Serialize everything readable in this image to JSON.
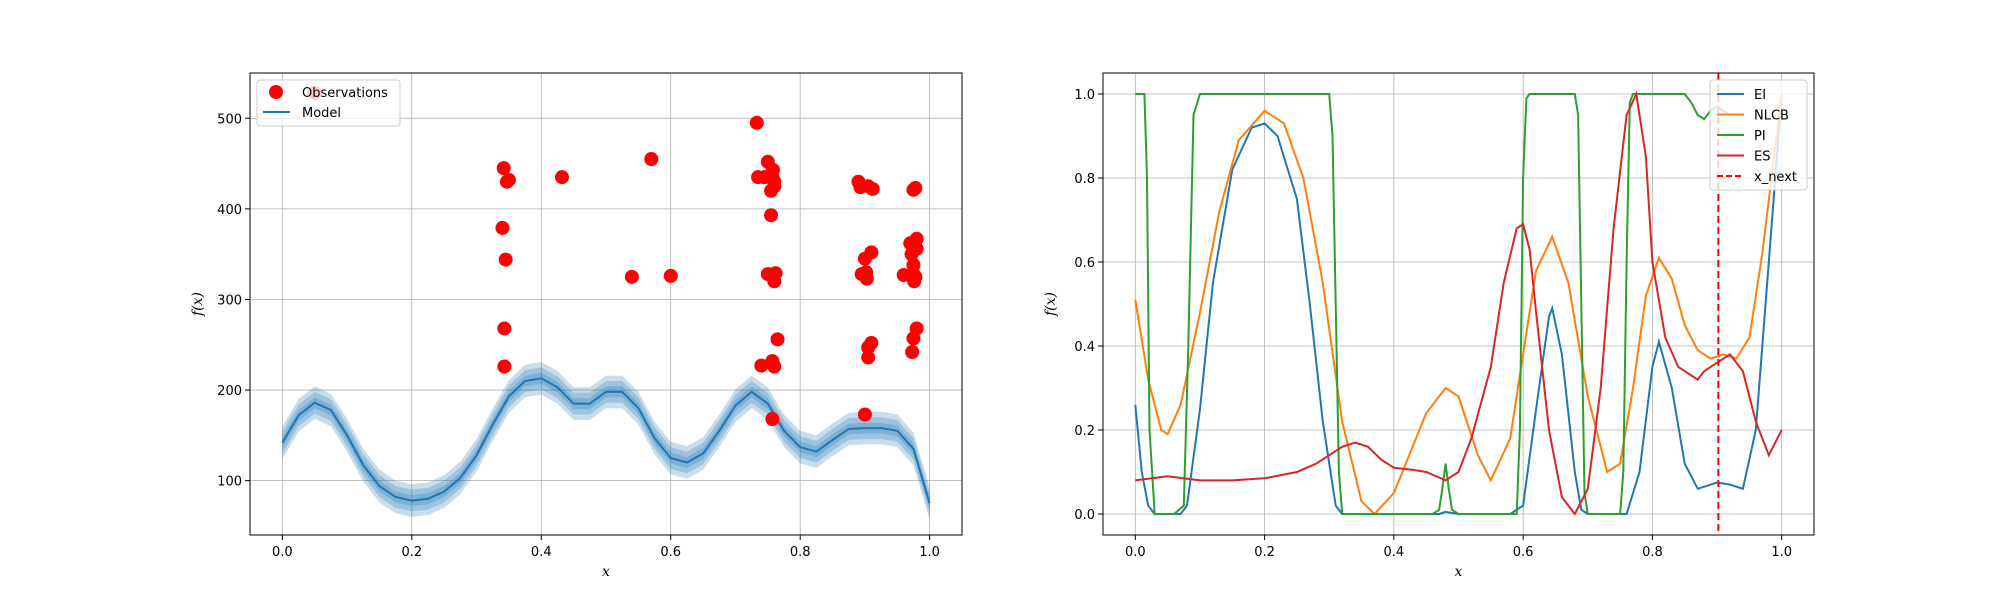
{
  "chart_data": [
    {
      "type": "scatter",
      "xlabel": "x",
      "ylabel": "f(x)",
      "xlim": [
        -0.05,
        1.05
      ],
      "ylim": [
        40,
        550
      ],
      "xticks": [
        0.0,
        0.2,
        0.4,
        0.6,
        0.8,
        1.0
      ],
      "xtick_labels": [
        "0.0",
        "0.2",
        "0.4",
        "0.6",
        "0.8",
        "1.0"
      ],
      "yticks": [
        100,
        200,
        300,
        400,
        500
      ],
      "ytick_labels": [
        "100",
        "200",
        "300",
        "400",
        "500"
      ],
      "grid": true,
      "legend_position": "top-left",
      "legend": [
        "Observations",
        "Model"
      ],
      "colors": {
        "observations": "#ff0000",
        "model": "#1f77b4"
      },
      "series": [
        {
          "name": "Observations",
          "points": [
            [
              0.05,
              528
            ],
            [
              0.34,
              379
            ],
            [
              0.345,
              344
            ],
            [
              0.342,
              445
            ],
            [
              0.347,
              430
            ],
            [
              0.35,
              432
            ],
            [
              0.343,
              268
            ],
            [
              0.343,
              226
            ],
            [
              0.432,
              435
            ],
            [
              0.54,
              325
            ],
            [
              0.57,
              455
            ],
            [
              0.6,
              326
            ],
            [
              0.733,
              495
            ],
            [
              0.735,
              435
            ],
            [
              0.74,
              227
            ],
            [
              0.745,
              435
            ],
            [
              0.75,
              452
            ],
            [
              0.75,
              328
            ],
            [
              0.755,
              420
            ],
            [
              0.755,
              393
            ],
            [
              0.757,
              435
            ],
            [
              0.76,
              430
            ],
            [
              0.76,
              425
            ],
            [
              0.758,
              443
            ],
            [
              0.76,
              320
            ],
            [
              0.762,
              329
            ],
            [
              0.76,
              226
            ],
            [
              0.757,
              232
            ],
            [
              0.765,
              256
            ],
            [
              0.757,
              168
            ],
            [
              0.89,
              430
            ],
            [
              0.893,
              424
            ],
            [
              0.895,
              328
            ],
            [
              0.9,
              345
            ],
            [
              0.902,
              330
            ],
            [
              0.905,
              425
            ],
            [
              0.903,
              323
            ],
            [
              0.905,
              247
            ],
            [
              0.905,
              236
            ],
            [
              0.91,
              352
            ],
            [
              0.91,
              252
            ],
            [
              0.912,
              422
            ],
            [
              0.9,
              173
            ],
            [
              0.96,
              327
            ],
            [
              0.97,
              362
            ],
            [
              0.972,
              350
            ],
            [
              0.975,
              338
            ],
            [
              0.975,
              328
            ],
            [
              0.976,
              320
            ],
            [
              0.975,
              421
            ],
            [
              0.978,
              423
            ],
            [
              0.98,
              367
            ],
            [
              0.98,
              356
            ],
            [
              0.978,
              325
            ],
            [
              0.98,
              268
            ],
            [
              0.975,
              257
            ],
            [
              0.973,
              242
            ]
          ]
        },
        {
          "name": "Model",
          "x": [
            0.0,
            0.025,
            0.05,
            0.075,
            0.1,
            0.125,
            0.15,
            0.175,
            0.2,
            0.225,
            0.25,
            0.275,
            0.3,
            0.325,
            0.35,
            0.375,
            0.4,
            0.425,
            0.45,
            0.475,
            0.5,
            0.525,
            0.55,
            0.575,
            0.6,
            0.625,
            0.65,
            0.675,
            0.7,
            0.725,
            0.75,
            0.775,
            0.8,
            0.825,
            0.85,
            0.875,
            0.9,
            0.925,
            0.95,
            0.975,
            1.0
          ],
          "y": [
            142,
            172,
            186,
            178,
            150,
            117,
            94,
            82,
            78,
            80,
            88,
            103,
            128,
            162,
            193,
            210,
            213,
            203,
            185,
            185,
            198,
            198,
            180,
            147,
            125,
            120,
            130,
            155,
            183,
            198,
            185,
            155,
            137,
            132,
            145,
            157,
            158,
            158,
            155,
            135,
            75
          ],
          "band_widths": [
            6,
            12,
            18
          ]
        }
      ]
    },
    {
      "type": "line",
      "xlabel": "x",
      "ylabel": "f(x)",
      "xlim": [
        -0.05,
        1.05
      ],
      "ylim": [
        -0.05,
        1.05
      ],
      "xticks": [
        0.0,
        0.2,
        0.4,
        0.6,
        0.8,
        1.0
      ],
      "xtick_labels": [
        "0.0",
        "0.2",
        "0.4",
        "0.6",
        "0.8",
        "1.0"
      ],
      "yticks": [
        0.0,
        0.2,
        0.4,
        0.6,
        0.8,
        1.0
      ],
      "ytick_labels": [
        "0.0",
        "0.2",
        "0.4",
        "0.6",
        "0.8",
        "1.0"
      ],
      "grid": true,
      "legend_position": "top-right",
      "legend": [
        "EI",
        "NLCB",
        "PI",
        "ES",
        "x_next"
      ],
      "series": [
        {
          "name": "EI",
          "color": "#1f77b4",
          "x": [
            0,
            0.01,
            0.02,
            0.03,
            0.05,
            0.07,
            0.08,
            0.1,
            0.12,
            0.15,
            0.18,
            0.2,
            0.22,
            0.25,
            0.27,
            0.29,
            0.31,
            0.32,
            0.33,
            0.4,
            0.47,
            0.48,
            0.5,
            0.58,
            0.6,
            0.62,
            0.64,
            0.645,
            0.66,
            0.68,
            0.69,
            0.7,
            0.76,
            0.78,
            0.8,
            0.81,
            0.83,
            0.85,
            0.87,
            0.9,
            0.92,
            0.94,
            0.96,
            0.98,
            1.0
          ],
          "y": [
            0.26,
            0.1,
            0.02,
            0,
            0,
            0,
            0.02,
            0.25,
            0.55,
            0.82,
            0.92,
            0.93,
            0.9,
            0.75,
            0.5,
            0.22,
            0.02,
            0,
            0,
            0,
            0,
            0.005,
            0,
            0,
            0.02,
            0.25,
            0.47,
            0.49,
            0.38,
            0.1,
            0.01,
            0,
            0,
            0.1,
            0.35,
            0.41,
            0.3,
            0.12,
            0.06,
            0.075,
            0.07,
            0.06,
            0.2,
            0.6,
            1.0
          ]
        },
        {
          "name": "NLCB",
          "color": "#ff7f0e",
          "x": [
            0,
            0.02,
            0.04,
            0.05,
            0.07,
            0.1,
            0.13,
            0.16,
            0.2,
            0.23,
            0.26,
            0.29,
            0.32,
            0.35,
            0.37,
            0.4,
            0.45,
            0.48,
            0.5,
            0.53,
            0.55,
            0.58,
            0.6,
            0.62,
            0.645,
            0.67,
            0.7,
            0.73,
            0.75,
            0.77,
            0.79,
            0.81,
            0.83,
            0.85,
            0.87,
            0.89,
            0.91,
            0.93,
            0.95,
            0.97,
            1.0
          ],
          "y": [
            0.51,
            0.32,
            0.2,
            0.19,
            0.26,
            0.48,
            0.72,
            0.89,
            0.96,
            0.93,
            0.8,
            0.55,
            0.22,
            0.03,
            0,
            0.05,
            0.24,
            0.3,
            0.28,
            0.14,
            0.08,
            0.18,
            0.38,
            0.58,
            0.66,
            0.55,
            0.28,
            0.1,
            0.12,
            0.3,
            0.52,
            0.61,
            0.56,
            0.45,
            0.39,
            0.37,
            0.38,
            0.37,
            0.42,
            0.62,
            1.0
          ]
        },
        {
          "name": "PI",
          "color": "#2ca02c",
          "x": [
            0,
            0.008,
            0.014,
            0.018,
            0.022,
            0.03,
            0.06,
            0.075,
            0.082,
            0.09,
            0.1,
            0.2,
            0.3,
            0.305,
            0.31,
            0.315,
            0.32,
            0.46,
            0.47,
            0.475,
            0.48,
            0.485,
            0.49,
            0.5,
            0.59,
            0.595,
            0.6,
            0.605,
            0.61,
            0.68,
            0.685,
            0.69,
            0.695,
            0.7,
            0.75,
            0.755,
            0.76,
            0.765,
            0.77,
            0.85,
            0.86,
            0.87,
            0.88,
            0.89,
            0.9,
            0.92
          ],
          "y": [
            1.0,
            1.0,
            1.0,
            0.8,
            0.2,
            0,
            0,
            0.02,
            0.4,
            0.95,
            1.0,
            1.0,
            1.0,
            0.9,
            0.5,
            0.1,
            0,
            0,
            0.01,
            0.06,
            0.12,
            0.06,
            0.01,
            0,
            0,
            0.2,
            0.8,
            0.99,
            1.0,
            1.0,
            0.95,
            0.5,
            0.05,
            0,
            0,
            0.1,
            0.6,
            0.98,
            1.0,
            1.0,
            0.98,
            0.95,
            0.94,
            0.96,
            0.97,
            0.95
          ]
        },
        {
          "name": "ES",
          "color": "#d62728",
          "x": [
            0,
            0.05,
            0.1,
            0.15,
            0.2,
            0.25,
            0.28,
            0.3,
            0.32,
            0.34,
            0.36,
            0.38,
            0.4,
            0.43,
            0.45,
            0.48,
            0.5,
            0.52,
            0.55,
            0.57,
            0.59,
            0.6,
            0.61,
            0.62,
            0.64,
            0.66,
            0.68,
            0.7,
            0.72,
            0.74,
            0.76,
            0.775,
            0.79,
            0.8,
            0.82,
            0.84,
            0.86,
            0.87,
            0.88,
            0.9,
            0.92,
            0.94,
            0.96,
            0.98,
            1.0
          ],
          "y": [
            0.08,
            0.09,
            0.08,
            0.08,
            0.085,
            0.1,
            0.12,
            0.14,
            0.16,
            0.17,
            0.16,
            0.13,
            0.11,
            0.105,
            0.1,
            0.08,
            0.1,
            0.18,
            0.35,
            0.55,
            0.68,
            0.69,
            0.63,
            0.48,
            0.2,
            0.04,
            0,
            0.06,
            0.3,
            0.68,
            0.95,
            1.0,
            0.85,
            0.6,
            0.42,
            0.35,
            0.33,
            0.32,
            0.34,
            0.36,
            0.38,
            0.34,
            0.22,
            0.14,
            0.2
          ]
        }
      ],
      "vline": {
        "name": "x_next",
        "x": 0.902,
        "color": "#ff0000",
        "style": "dashed"
      }
    }
  ]
}
